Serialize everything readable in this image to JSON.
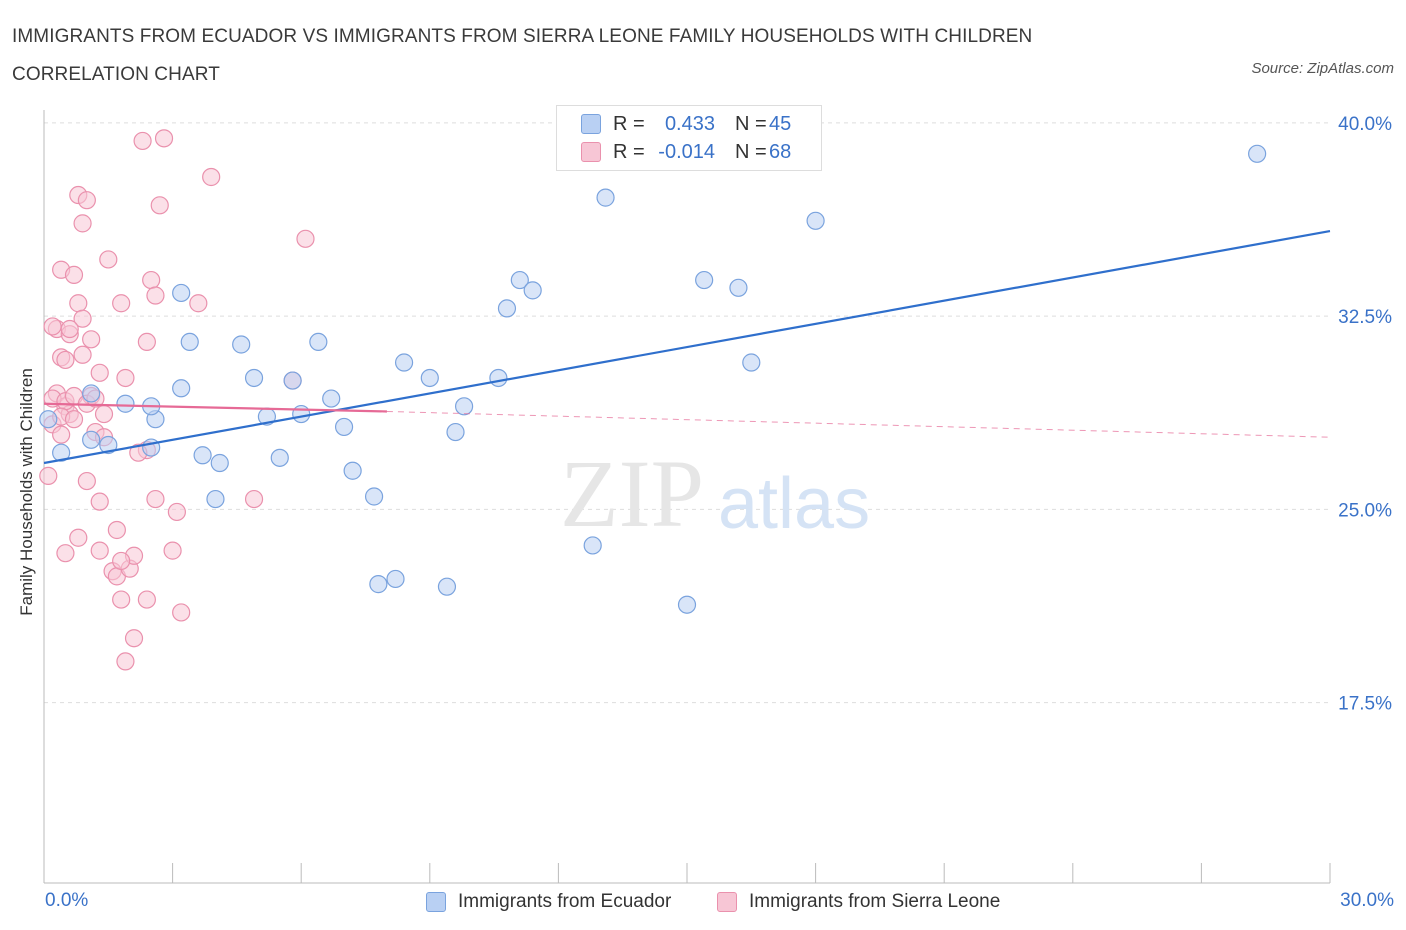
{
  "title": "IMMIGRANTS FROM ECUADOR VS IMMIGRANTS FROM SIERRA LEONE FAMILY HOUSEHOLDS WITH CHILDREN CORRELATION CHART",
  "source": "Source: ZipAtlas.com",
  "watermark": {
    "zip": "ZIP",
    "atlas": "atlas"
  },
  "legend": {
    "r_label": "R =",
    "n_label": "N =",
    "rows": [
      {
        "r": "0.433",
        "n": "45"
      },
      {
        "r": "-0.014",
        "n": "68"
      }
    ]
  },
  "colors": {
    "ecuador_fill": "#b9d0f3",
    "ecuador_stroke": "#7aa3de",
    "ecuador_line": "#2f6fcc",
    "sierra_fill": "#f7c6d5",
    "sierra_stroke": "#ea91ad",
    "sierra_line": "#e66a96",
    "axis_text": "#3a72c8",
    "grid": "#dddddd"
  },
  "chart_data": {
    "type": "scatter",
    "title": "IMMIGRANTS FROM ECUADOR VS IMMIGRANTS FROM SIERRA LEONE FAMILY HOUSEHOLDS WITH CHILDREN CORRELATION CHART",
    "xlabel": "",
    "ylabel": "Family Households with Children",
    "xlim": [
      0,
      30
    ],
    "ylim": [
      10.5,
      40.5
    ],
    "x_tick_labels": [
      "0.0%",
      "30.0%"
    ],
    "y_ticks": [
      17.5,
      25.0,
      32.5,
      40.0
    ],
    "y_tick_labels": [
      "17.5%",
      "25.0%",
      "32.5%",
      "40.0%"
    ],
    "grid": true,
    "legend_position": "top-center",
    "series": [
      {
        "name": "Immigrants from Ecuador",
        "color": "#7aa3de",
        "points": [
          [
            0.1,
            28.5
          ],
          [
            0.4,
            27.2
          ],
          [
            1.1,
            27.7
          ],
          [
            1.9,
            29.1
          ],
          [
            1.5,
            27.5
          ],
          [
            2.5,
            27.4
          ],
          [
            2.6,
            28.5
          ],
          [
            3.2,
            29.7
          ],
          [
            3.2,
            33.4
          ],
          [
            3.4,
            31.5
          ],
          [
            3.7,
            27.1
          ],
          [
            4.1,
            26.8
          ],
          [
            4.0,
            25.4
          ],
          [
            4.6,
            31.4
          ],
          [
            4.9,
            30.1
          ],
          [
            5.2,
            28.6
          ],
          [
            5.5,
            27.0
          ],
          [
            5.8,
            30.0
          ],
          [
            6.0,
            28.7
          ],
          [
            6.4,
            31.5
          ],
          [
            6.7,
            29.3
          ],
          [
            7.0,
            28.2
          ],
          [
            7.2,
            26.5
          ],
          [
            7.7,
            25.5
          ],
          [
            7.8,
            22.1
          ],
          [
            8.2,
            22.3
          ],
          [
            8.4,
            30.7
          ],
          [
            9.0,
            30.1
          ],
          [
            9.4,
            22.0
          ],
          [
            9.6,
            28.0
          ],
          [
            9.8,
            29.0
          ],
          [
            10.6,
            30.1
          ],
          [
            10.8,
            32.8
          ],
          [
            11.1,
            33.9
          ],
          [
            11.4,
            33.5
          ],
          [
            12.8,
            23.6
          ],
          [
            13.1,
            37.1
          ],
          [
            15.0,
            21.3
          ],
          [
            15.4,
            33.9
          ],
          [
            16.2,
            33.6
          ],
          [
            16.5,
            30.7
          ],
          [
            18.0,
            36.2
          ],
          [
            28.3,
            38.8
          ],
          [
            1.1,
            29.5
          ],
          [
            2.5,
            29.0
          ]
        ]
      },
      {
        "name": "Immigrants from Sierra Leone",
        "color": "#ea91ad",
        "points": [
          [
            0.1,
            26.3
          ],
          [
            0.2,
            28.3
          ],
          [
            0.3,
            29.5
          ],
          [
            0.4,
            30.9
          ],
          [
            0.5,
            29.0
          ],
          [
            0.6,
            28.7
          ],
          [
            0.3,
            32.0
          ],
          [
            0.4,
            34.3
          ],
          [
            0.5,
            30.8
          ],
          [
            0.6,
            31.8
          ],
          [
            0.7,
            34.1
          ],
          [
            0.8,
            37.2
          ],
          [
            0.8,
            33.0
          ],
          [
            0.9,
            36.1
          ],
          [
            0.9,
            32.4
          ],
          [
            1.0,
            37.0
          ],
          [
            1.1,
            29.4
          ],
          [
            1.2,
            28.0
          ],
          [
            1.3,
            25.3
          ],
          [
            1.4,
            27.8
          ],
          [
            1.4,
            28.7
          ],
          [
            1.5,
            34.7
          ],
          [
            1.6,
            22.6
          ],
          [
            1.7,
            24.2
          ],
          [
            1.7,
            22.4
          ],
          [
            1.8,
            21.5
          ],
          [
            1.8,
            33.0
          ],
          [
            1.9,
            30.1
          ],
          [
            2.0,
            22.7
          ],
          [
            2.1,
            23.2
          ],
          [
            2.1,
            20.0
          ],
          [
            2.3,
            39.3
          ],
          [
            2.4,
            27.3
          ],
          [
            2.4,
            31.5
          ],
          [
            2.4,
            21.5
          ],
          [
            2.5,
            33.9
          ],
          [
            2.6,
            33.3
          ],
          [
            2.6,
            25.4
          ],
          [
            2.7,
            36.8
          ],
          [
            3.0,
            23.4
          ],
          [
            3.1,
            24.9
          ],
          [
            3.2,
            21.0
          ],
          [
            3.6,
            33.0
          ],
          [
            3.9,
            37.9
          ],
          [
            4.9,
            25.4
          ],
          [
            5.8,
            30.0
          ],
          [
            6.1,
            35.5
          ],
          [
            0.2,
            29.3
          ],
          [
            0.5,
            29.2
          ],
          [
            0.7,
            29.4
          ],
          [
            1.0,
            29.1
          ],
          [
            1.2,
            29.3
          ],
          [
            0.5,
            23.3
          ],
          [
            0.8,
            23.9
          ],
          [
            1.3,
            23.4
          ],
          [
            1.1,
            31.6
          ],
          [
            0.4,
            27.9
          ],
          [
            0.6,
            32.0
          ],
          [
            0.9,
            31.0
          ],
          [
            1.3,
            30.3
          ],
          [
            2.8,
            39.4
          ],
          [
            1.9,
            19.1
          ],
          [
            0.4,
            28.6
          ],
          [
            1.8,
            23.0
          ],
          [
            2.2,
            27.2
          ],
          [
            0.2,
            32.1
          ],
          [
            0.7,
            28.5
          ],
          [
            1.0,
            26.1
          ]
        ]
      }
    ],
    "trendlines": [
      {
        "series": "Immigrants from Ecuador",
        "x": [
          0,
          30
        ],
        "y": [
          26.8,
          35.8
        ],
        "style": "solid"
      },
      {
        "series": "Immigrants from Sierra Leone",
        "x": [
          0,
          8
        ],
        "y": [
          29.1,
          28.8
        ],
        "style": "solid"
      },
      {
        "series": "Immigrants from Sierra Leone",
        "x": [
          8,
          30
        ],
        "y": [
          28.8,
          27.8
        ],
        "style": "dashed"
      }
    ]
  }
}
